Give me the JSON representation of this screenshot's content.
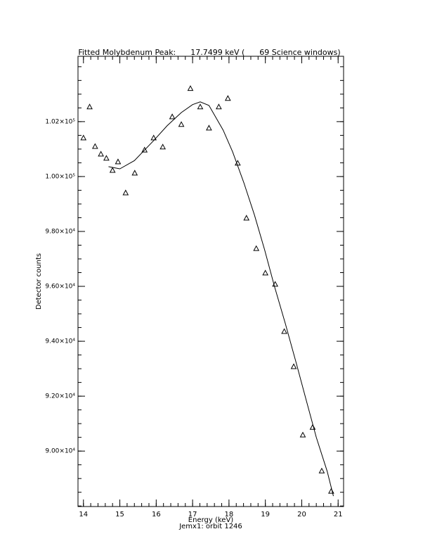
{
  "chart_data": {
    "type": "scatter",
    "title": "Fitted Molybdenum Peak:      17.7499 keV (      69 Science windows)",
    "xlabel": "Energy (keV)",
    "note": "Jemx1: orbit 1246",
    "ylabel": "Detector counts",
    "xlim": [
      13.85,
      21.15
    ],
    "xticks": [
      14,
      15,
      16,
      17,
      18,
      19,
      20,
      21
    ],
    "xminor": 5,
    "ylim": [
      87980,
      104380
    ],
    "yticks": [
      {
        "value": 90000,
        "label": "9.00×10⁴"
      },
      {
        "value": 92000,
        "label": "9.20×10⁴"
      },
      {
        "value": 94000,
        "label": "9.40×10⁴"
      },
      {
        "value": 96000,
        "label": "9.60×10⁴"
      },
      {
        "value": 98000,
        "label": "9.80×10⁴"
      },
      {
        "value": 100000,
        "label": "1.00×10⁵"
      },
      {
        "value": 102000,
        "label": "1.02×10⁵"
      }
    ],
    "yminor": 4,
    "color": "#000000",
    "series": [
      {
        "mark": "triangle",
        "x": [
          14.0,
          14.17,
          14.32,
          14.48,
          14.63,
          14.8,
          14.95,
          15.16,
          15.41,
          15.68,
          15.93,
          16.18,
          16.44,
          16.69,
          16.94,
          17.21,
          17.45,
          17.72,
          17.97,
          18.24,
          18.48,
          18.75,
          19.0,
          19.27,
          19.52,
          19.78,
          20.03,
          20.3,
          20.55,
          20.81
        ],
        "values": [
          101410,
          102540,
          101100,
          100820,
          100670,
          100230,
          100540,
          99410,
          100130,
          100970,
          101410,
          101080,
          102180,
          101900,
          103210,
          102540,
          101770,
          102540,
          102850,
          100490,
          98490,
          97380,
          96490,
          96080,
          94360,
          93080,
          90590,
          90870,
          89280,
          88540
        ]
      },
      {
        "mark": "line",
        "x": [
          14.69,
          15.0,
          15.4,
          15.93,
          16.3,
          16.69,
          17.0,
          17.21,
          17.45,
          17.84,
          18.1,
          18.41,
          18.7,
          18.98,
          19.25,
          19.55,
          19.85,
          20.13,
          20.4,
          20.7,
          20.87
        ],
        "values": [
          100360,
          100280,
          100580,
          101310,
          101850,
          102330,
          102620,
          102720,
          102590,
          101690,
          100900,
          99770,
          98600,
          97330,
          96000,
          94640,
          93200,
          91820,
          90500,
          89260,
          88360
        ]
      }
    ]
  }
}
